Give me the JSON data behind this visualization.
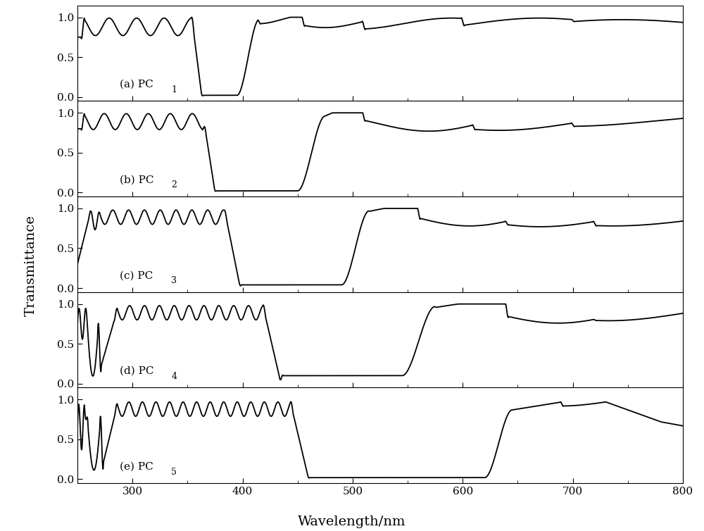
{
  "xlim": [
    250,
    800
  ],
  "ylim": [
    -0.05,
    1.15
  ],
  "yticks": [
    0.0,
    0.5,
    1.0
  ],
  "xticks": [
    300,
    400,
    500,
    600,
    700,
    800
  ],
  "xlabel": "Wavelength/nm",
  "ylabel": "Transmittance",
  "labels": [
    "(a) PC",
    "(b) PC",
    "(c) PC",
    "(d) PC",
    "(e) PC"
  ],
  "subscripts": [
    "1",
    "2",
    "3",
    "4",
    "5"
  ],
  "background_color": "#ffffff",
  "line_color": "#000000",
  "line_width": 1.3,
  "axis_fontsize": 14,
  "tick_fontsize": 11,
  "label_fontsize": 11
}
